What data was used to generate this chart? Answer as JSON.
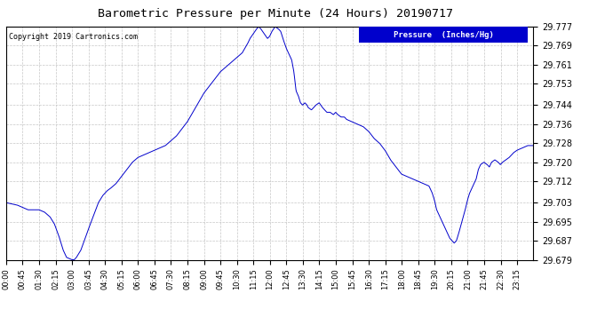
{
  "title": "Barometric Pressure per Minute (24 Hours) 20190717",
  "copyright": "Copyright 2019 Cartronics.com",
  "legend_label": "Pressure  (Inches/Hg)",
  "line_color": "#0000cc",
  "background_color": "#ffffff",
  "grid_color": "#c0c0c0",
  "yticks": [
    29.679,
    29.687,
    29.695,
    29.703,
    29.712,
    29.72,
    29.728,
    29.736,
    29.744,
    29.753,
    29.761,
    29.769,
    29.777
  ],
  "ylim": [
    29.679,
    29.777
  ],
  "xtick_labels": [
    "00:00",
    "00:45",
    "01:30",
    "02:15",
    "03:00",
    "03:45",
    "04:30",
    "05:15",
    "06:00",
    "06:45",
    "07:30",
    "08:15",
    "09:00",
    "09:45",
    "10:30",
    "11:15",
    "12:00",
    "12:45",
    "13:30",
    "14:15",
    "15:00",
    "15:45",
    "16:30",
    "17:15",
    "18:00",
    "18:45",
    "19:30",
    "20:15",
    "21:00",
    "21:45",
    "22:30",
    "23:15"
  ],
  "waypoints": [
    [
      0.0,
      29.703
    ],
    [
      0.5,
      29.702
    ],
    [
      0.75,
      29.701
    ],
    [
      1.0,
      29.7
    ],
    [
      1.5,
      29.7
    ],
    [
      1.75,
      29.699
    ],
    [
      2.0,
      29.697
    ],
    [
      2.2,
      29.694
    ],
    [
      2.4,
      29.689
    ],
    [
      2.6,
      29.683
    ],
    [
      2.75,
      29.68
    ],
    [
      3.0,
      29.679
    ],
    [
      3.1,
      29.679
    ],
    [
      3.2,
      29.68
    ],
    [
      3.4,
      29.683
    ],
    [
      3.6,
      29.688
    ],
    [
      3.75,
      29.692
    ],
    [
      4.0,
      29.698
    ],
    [
      4.2,
      29.703
    ],
    [
      4.4,
      29.706
    ],
    [
      4.6,
      29.708
    ],
    [
      4.75,
      29.709
    ],
    [
      5.0,
      29.711
    ],
    [
      5.25,
      29.714
    ],
    [
      5.5,
      29.717
    ],
    [
      5.75,
      29.72
    ],
    [
      6.0,
      29.722
    ],
    [
      6.25,
      29.723
    ],
    [
      6.5,
      29.724
    ],
    [
      6.75,
      29.725
    ],
    [
      7.0,
      29.726
    ],
    [
      7.25,
      29.727
    ],
    [
      7.5,
      29.729
    ],
    [
      7.75,
      29.731
    ],
    [
      8.0,
      29.734
    ],
    [
      8.25,
      29.737
    ],
    [
      8.5,
      29.741
    ],
    [
      8.75,
      29.745
    ],
    [
      9.0,
      29.749
    ],
    [
      9.25,
      29.752
    ],
    [
      9.5,
      29.755
    ],
    [
      9.75,
      29.758
    ],
    [
      10.0,
      29.76
    ],
    [
      10.25,
      29.762
    ],
    [
      10.5,
      29.764
    ],
    [
      10.75,
      29.766
    ],
    [
      11.0,
      29.77
    ],
    [
      11.1,
      29.772
    ],
    [
      11.25,
      29.774
    ],
    [
      11.4,
      29.776
    ],
    [
      11.5,
      29.777
    ],
    [
      11.6,
      29.776
    ],
    [
      11.75,
      29.774
    ],
    [
      11.9,
      29.772
    ],
    [
      12.0,
      29.773
    ],
    [
      12.1,
      29.775
    ],
    [
      12.25,
      29.777
    ],
    [
      12.4,
      29.776
    ],
    [
      12.5,
      29.775
    ],
    [
      12.6,
      29.772
    ],
    [
      12.75,
      29.768
    ],
    [
      13.0,
      29.763
    ],
    [
      13.1,
      29.758
    ],
    [
      13.2,
      29.75
    ],
    [
      13.3,
      29.748
    ],
    [
      13.4,
      29.745
    ],
    [
      13.5,
      29.744
    ],
    [
      13.6,
      29.745
    ],
    [
      13.7,
      29.744
    ],
    [
      13.75,
      29.743
    ],
    [
      13.9,
      29.742
    ],
    [
      14.0,
      29.743
    ],
    [
      14.1,
      29.744
    ],
    [
      14.25,
      29.745
    ],
    [
      14.4,
      29.743
    ],
    [
      14.5,
      29.742
    ],
    [
      14.6,
      29.741
    ],
    [
      14.75,
      29.741
    ],
    [
      14.9,
      29.74
    ],
    [
      15.0,
      29.741
    ],
    [
      15.1,
      29.74
    ],
    [
      15.25,
      29.739
    ],
    [
      15.4,
      29.739
    ],
    [
      15.5,
      29.738
    ],
    [
      15.75,
      29.737
    ],
    [
      16.0,
      29.736
    ],
    [
      16.25,
      29.735
    ],
    [
      16.5,
      29.733
    ],
    [
      16.75,
      29.73
    ],
    [
      17.0,
      29.728
    ],
    [
      17.25,
      29.725
    ],
    [
      17.5,
      29.721
    ],
    [
      17.75,
      29.718
    ],
    [
      18.0,
      29.715
    ],
    [
      18.25,
      29.714
    ],
    [
      18.5,
      29.713
    ],
    [
      18.75,
      29.712
    ],
    [
      19.0,
      29.711
    ],
    [
      19.25,
      29.71
    ],
    [
      19.4,
      29.707
    ],
    [
      19.5,
      29.704
    ],
    [
      19.6,
      29.7
    ],
    [
      19.75,
      29.697
    ],
    [
      19.9,
      29.694
    ],
    [
      20.0,
      29.692
    ],
    [
      20.1,
      29.69
    ],
    [
      20.2,
      29.688
    ],
    [
      20.3,
      29.687
    ],
    [
      20.4,
      29.686
    ],
    [
      20.5,
      29.687
    ],
    [
      20.6,
      29.69
    ],
    [
      20.75,
      29.695
    ],
    [
      20.9,
      29.7
    ],
    [
      21.0,
      29.704
    ],
    [
      21.1,
      29.707
    ],
    [
      21.25,
      29.71
    ],
    [
      21.4,
      29.713
    ],
    [
      21.5,
      29.717
    ],
    [
      21.6,
      29.719
    ],
    [
      21.75,
      29.72
    ],
    [
      21.9,
      29.719
    ],
    [
      22.0,
      29.718
    ],
    [
      22.1,
      29.72
    ],
    [
      22.25,
      29.721
    ],
    [
      22.4,
      29.72
    ],
    [
      22.5,
      29.719
    ],
    [
      22.6,
      29.72
    ],
    [
      22.75,
      29.721
    ],
    [
      22.9,
      29.722
    ],
    [
      23.0,
      29.723
    ],
    [
      23.1,
      29.724
    ],
    [
      23.25,
      29.725
    ],
    [
      23.5,
      29.726
    ],
    [
      23.75,
      29.727
    ],
    [
      24.0,
      29.727
    ]
  ]
}
